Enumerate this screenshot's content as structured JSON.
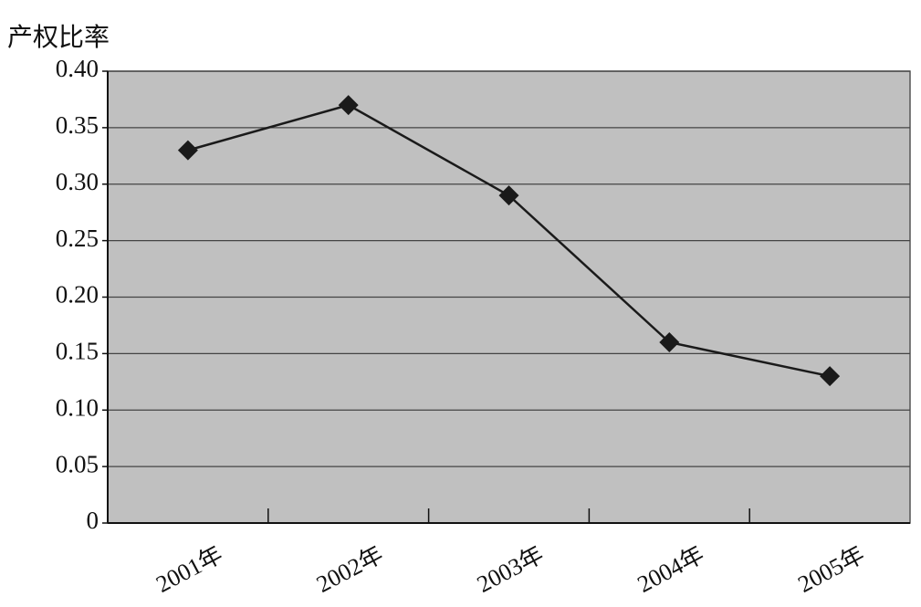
{
  "chart_data": {
    "type": "line",
    "y_label": "产权比率",
    "categories": [
      "2001年",
      "2002年",
      "2003年",
      "2004年",
      "2005年"
    ],
    "series": [
      {
        "name": "产权比率",
        "color": "#1a1a1a",
        "values": [
          0.33,
          0.37,
          0.29,
          0.16,
          0.13
        ]
      }
    ],
    "ylim": [
      0,
      0.4
    ],
    "yticks": [
      0,
      0.05,
      {
        "value": 0.1,
        "label": "0.10"
      },
      0.15,
      {
        "value": 0.2,
        "label": "0.20"
      },
      0.25,
      {
        "value": 0.3,
        "label": "0.30"
      },
      0.35,
      {
        "value": 0.4,
        "label": "0.40"
      }
    ],
    "grid": true,
    "background": "#c0c0c0"
  }
}
